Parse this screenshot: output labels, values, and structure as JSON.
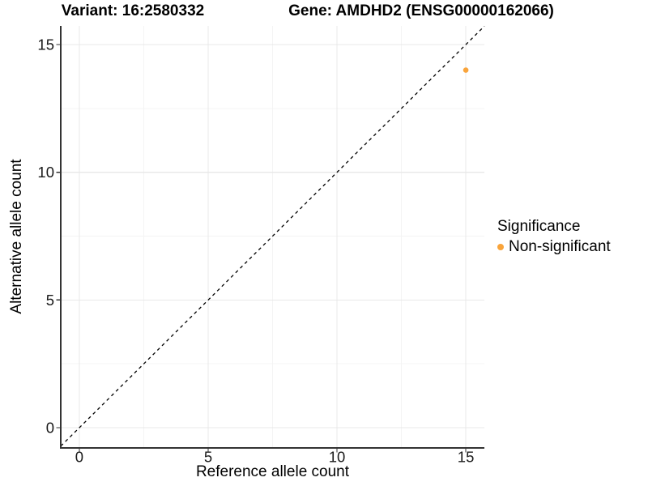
{
  "titles": {
    "variant": "Variant: 16:2580332",
    "gene": "Gene: AMDHD2 (ENSG00000162066)"
  },
  "chart_data": {
    "type": "scatter",
    "xlabel": "Reference allele count",
    "ylabel": "Alternative allele count",
    "xlim": [
      -0.72,
      15.72
    ],
    "ylim": [
      -0.79,
      15.73
    ],
    "x_major_ticks": [
      0,
      5,
      10,
      15
    ],
    "y_major_ticks": [
      0,
      5,
      10,
      15
    ],
    "x_minor_gridlines": [
      2.5,
      7.5,
      12.5
    ],
    "y_minor_gridlines": [
      2.5,
      7.5,
      12.5
    ],
    "grid": "major-and-minor",
    "identity_line": {
      "slope": 1,
      "intercept": 0,
      "style": "dashed",
      "color": "#000000"
    },
    "series": [
      {
        "name": "Non-significant",
        "color": "#F9A43B",
        "points": [
          {
            "x": 15,
            "y": 14
          }
        ]
      }
    ],
    "legend": {
      "title": "Significance",
      "position": "right",
      "entries": [
        {
          "label": "Non-significant",
          "color": "#F9A43B",
          "marker": "dot-icon"
        }
      ]
    },
    "style": {
      "axis_color": "#333333",
      "tick_color": "#333333",
      "tick_label_color": "#1a1a1a",
      "grid_major_color": "#E9E9E9",
      "grid_minor_color": "#F4F4F4",
      "background": "#FFFFFF"
    }
  }
}
